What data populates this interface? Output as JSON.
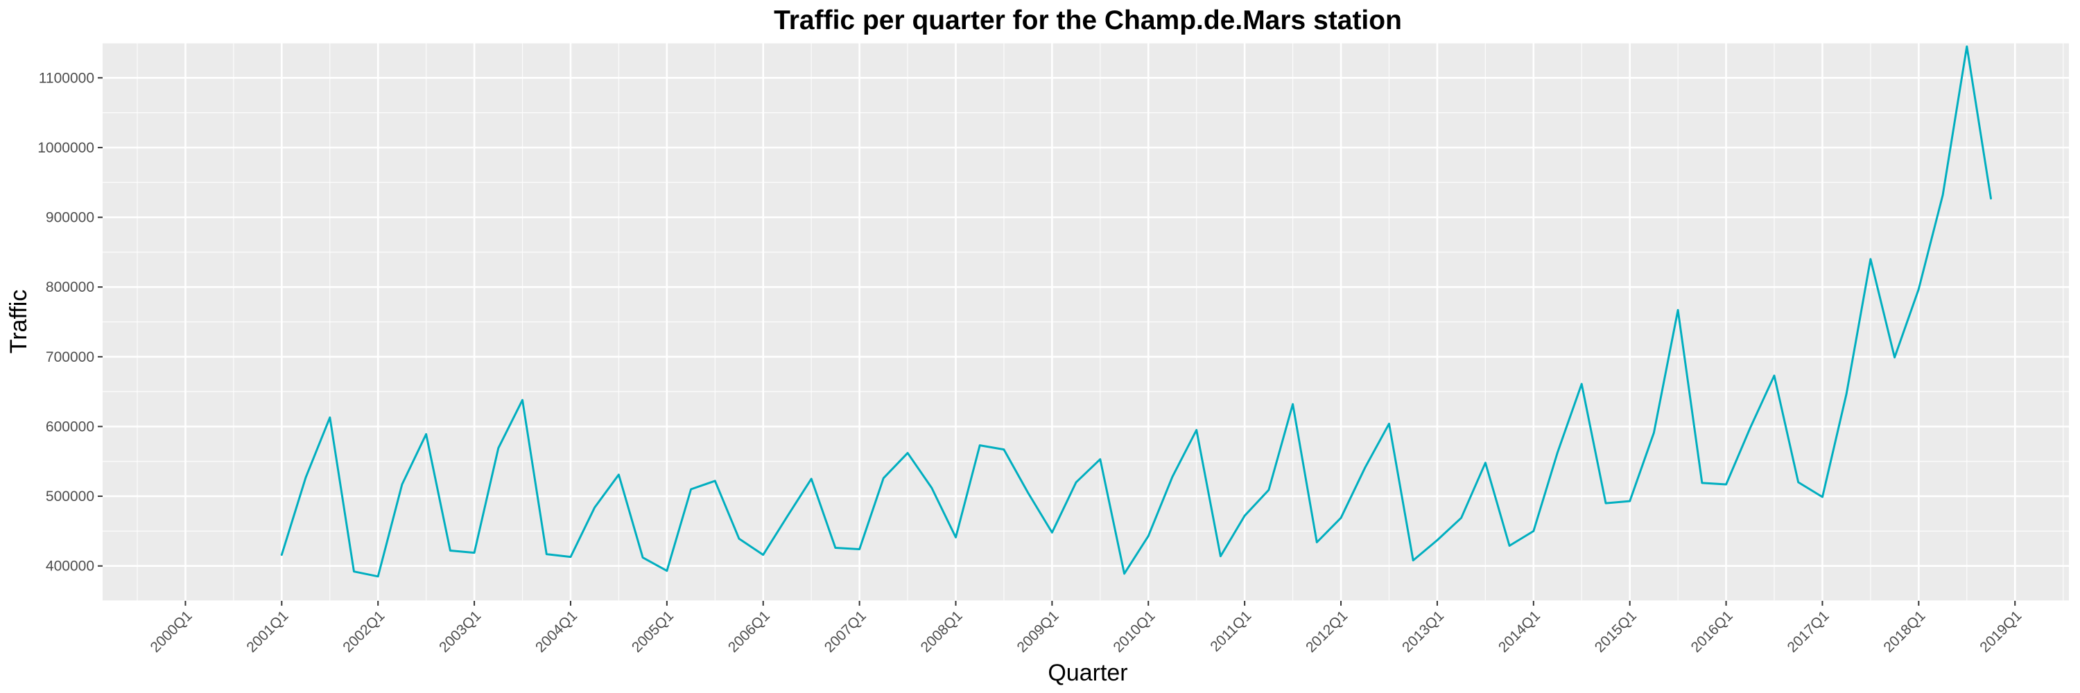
{
  "chart_data": {
    "type": "line",
    "title": "Traffic per quarter for the Champ.de.Mars station",
    "xlabel": "Quarter",
    "ylabel": "Traffic",
    "x_tick_labels": [
      "2000Q1",
      "2001Q1",
      "2002Q1",
      "2003Q1",
      "2004Q1",
      "2005Q1",
      "2006Q1",
      "2007Q1",
      "2008Q1",
      "2009Q1",
      "2010Q1",
      "2011Q1",
      "2012Q1",
      "2013Q1",
      "2014Q1",
      "2015Q1",
      "2016Q1",
      "2017Q1",
      "2018Q1",
      "2019Q1"
    ],
    "y_ticks": [
      400000,
      500000,
      600000,
      700000,
      800000,
      900000,
      1000000,
      1100000
    ],
    "y_tick_labels": [
      "400000",
      "500000",
      "600000",
      "700000",
      "800000",
      "900000",
      "1000000",
      "1100000"
    ],
    "xlim": [
      "2000Q1",
      "2019Q1"
    ],
    "ylim": [
      350000,
      1150000
    ],
    "grid": true,
    "legend": "none",
    "colors": {
      "line": "#00aebf",
      "panel": "#ebebeb",
      "grid": "#ffffff"
    },
    "series": [
      {
        "x": [
          "2001Q1",
          "2001Q2",
          "2001Q3",
          "2001Q4",
          "2002Q1",
          "2002Q2",
          "2002Q3",
          "2002Q4",
          "2003Q1",
          "2003Q2",
          "2003Q3",
          "2003Q4",
          "2004Q1",
          "2004Q2",
          "2004Q3",
          "2004Q4",
          "2005Q1",
          "2005Q2",
          "2005Q3",
          "2005Q4",
          "2006Q1",
          "2006Q2",
          "2006Q3",
          "2006Q4",
          "2007Q1",
          "2007Q2",
          "2007Q3",
          "2007Q4",
          "2008Q1",
          "2008Q2",
          "2008Q3",
          "2008Q4",
          "2009Q1",
          "2009Q2",
          "2009Q3",
          "2009Q4",
          "2010Q1",
          "2010Q2",
          "2010Q3",
          "2010Q4",
          "2011Q1",
          "2011Q2",
          "2011Q3",
          "2011Q4",
          "2012Q1",
          "2012Q2",
          "2012Q3",
          "2012Q4",
          "2013Q1",
          "2013Q2",
          "2013Q3",
          "2013Q4",
          "2014Q1",
          "2014Q2",
          "2014Q3",
          "2014Q4",
          "2015Q1",
          "2015Q2",
          "2015Q3",
          "2015Q4",
          "2016Q1",
          "2016Q2",
          "2016Q3",
          "2016Q4",
          "2017Q1",
          "2017Q2",
          "2017Q3",
          "2017Q4",
          "2018Q1",
          "2018Q2",
          "2018Q3",
          "2018Q4"
        ],
        "values": [
          416000,
          527000,
          613000,
          392000,
          385000,
          517000,
          589000,
          422000,
          419000,
          569000,
          638000,
          417000,
          413000,
          484000,
          531000,
          412000,
          393000,
          510000,
          522000,
          439000,
          416000,
          471000,
          525000,
          426000,
          424000,
          526000,
          562000,
          512000,
          441000,
          573000,
          567000,
          505000,
          448000,
          520000,
          553000,
          389000,
          443000,
          528000,
          595000,
          414000,
          472000,
          509000,
          632000,
          434000,
          469000,
          541000,
          604000,
          408000,
          437000,
          469000,
          548000,
          429000,
          450000,
          563000,
          661000,
          490000,
          493000,
          591000,
          767000,
          519000,
          517000,
          598000,
          673000,
          520000,
          499000,
          647000,
          840000,
          699000,
          797000,
          932000,
          1145000,
          927000
        ]
      }
    ]
  }
}
